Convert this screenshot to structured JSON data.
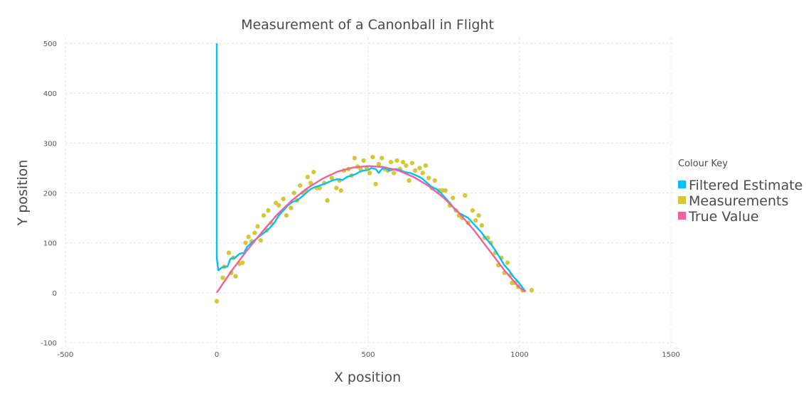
{
  "chart_data": {
    "type": "scatter",
    "title": "Measurement of a Canonball in Flight",
    "xlabel": "X position",
    "ylabel": "Y position",
    "xlim": [
      -500,
      1500
    ],
    "ylim": [
      -100,
      500
    ],
    "xticks": [
      "-500",
      "0",
      "500",
      "1000",
      "1500"
    ],
    "yticks": [
      "-100",
      "0",
      "100",
      "200",
      "300",
      "400",
      "500"
    ],
    "grid": true,
    "legend": {
      "title": "Colour Key",
      "placement": "right",
      "entries": [
        "Filtered Estimate",
        "Measurements",
        "True Value"
      ]
    },
    "series": [
      {
        "name": "Filtered Estimate",
        "kind": "line",
        "color": "#00bfff",
        "points": [
          [
            0,
            500
          ],
          [
            0,
            70
          ],
          [
            5,
            45
          ],
          [
            15,
            50
          ],
          [
            25,
            52
          ],
          [
            35,
            52
          ],
          [
            45,
            68
          ],
          [
            60,
            70
          ],
          [
            75,
            78
          ],
          [
            90,
            80
          ],
          [
            100,
            92
          ],
          [
            115,
            100
          ],
          [
            130,
            108
          ],
          [
            145,
            115
          ],
          [
            160,
            122
          ],
          [
            175,
            130
          ],
          [
            190,
            140
          ],
          [
            205,
            155
          ],
          [
            220,
            165
          ],
          [
            235,
            175
          ],
          [
            250,
            182
          ],
          [
            265,
            185
          ],
          [
            280,
            192
          ],
          [
            295,
            200
          ],
          [
            310,
            208
          ],
          [
            325,
            212
          ],
          [
            340,
            215
          ],
          [
            355,
            218
          ],
          [
            370,
            222
          ],
          [
            385,
            226
          ],
          [
            400,
            228
          ],
          [
            415,
            226
          ],
          [
            430,
            232
          ],
          [
            445,
            235
          ],
          [
            460,
            238
          ],
          [
            470,
            242
          ],
          [
            485,
            245
          ],
          [
            500,
            246
          ],
          [
            510,
            250
          ],
          [
            525,
            248
          ],
          [
            535,
            240
          ],
          [
            545,
            248
          ],
          [
            555,
            250
          ],
          [
            570,
            245
          ],
          [
            590,
            248
          ],
          [
            605,
            246
          ],
          [
            620,
            242
          ],
          [
            640,
            240
          ],
          [
            655,
            236
          ],
          [
            670,
            232
          ],
          [
            680,
            228
          ],
          [
            695,
            220
          ],
          [
            710,
            212
          ],
          [
            725,
            208
          ],
          [
            740,
            200
          ],
          [
            755,
            190
          ],
          [
            770,
            180
          ],
          [
            785,
            168
          ],
          [
            800,
            160
          ],
          [
            815,
            155
          ],
          [
            830,
            150
          ],
          [
            845,
            140
          ],
          [
            860,
            130
          ],
          [
            875,
            120
          ],
          [
            890,
            108
          ],
          [
            905,
            98
          ],
          [
            920,
            85
          ],
          [
            935,
            70
          ],
          [
            950,
            55
          ],
          [
            965,
            45
          ],
          [
            980,
            32
          ],
          [
            995,
            22
          ],
          [
            1010,
            10
          ],
          [
            1020,
            2
          ]
        ]
      },
      {
        "name": "Measurements",
        "kind": "scatter",
        "color": "#d4c838",
        "points": [
          [
            0,
            -17
          ],
          [
            20,
            30
          ],
          [
            25,
            52
          ],
          [
            40,
            80
          ],
          [
            48,
            40
          ],
          [
            55,
            70
          ],
          [
            62,
            33
          ],
          [
            75,
            58
          ],
          [
            85,
            60
          ],
          [
            95,
            100
          ],
          [
            105,
            112
          ],
          [
            115,
            103
          ],
          [
            125,
            120
          ],
          [
            135,
            133
          ],
          [
            145,
            105
          ],
          [
            155,
            155
          ],
          [
            165,
            125
          ],
          [
            170,
            165
          ],
          [
            180,
            140
          ],
          [
            195,
            180
          ],
          [
            205,
            175
          ],
          [
            220,
            188
          ],
          [
            230,
            155
          ],
          [
            245,
            170
          ],
          [
            255,
            200
          ],
          [
            265,
            185
          ],
          [
            275,
            215
          ],
          [
            285,
            200
          ],
          [
            295,
            205
          ],
          [
            300,
            232
          ],
          [
            310,
            220
          ],
          [
            320,
            242
          ],
          [
            330,
            210
          ],
          [
            340,
            210
          ],
          [
            355,
            220
          ],
          [
            365,
            185
          ],
          [
            380,
            230
          ],
          [
            395,
            210
          ],
          [
            405,
            225
          ],
          [
            410,
            205
          ],
          [
            420,
            245
          ],
          [
            435,
            248
          ],
          [
            445,
            235
          ],
          [
            455,
            270
          ],
          [
            465,
            253
          ],
          [
            475,
            248
          ],
          [
            485,
            265
          ],
          [
            495,
            250
          ],
          [
            505,
            240
          ],
          [
            515,
            272
          ],
          [
            525,
            218
          ],
          [
            535,
            258
          ],
          [
            545,
            270
          ],
          [
            555,
            248
          ],
          [
            565,
            245
          ],
          [
            575,
            262
          ],
          [
            585,
            240
          ],
          [
            595,
            265
          ],
          [
            605,
            248
          ],
          [
            615,
            262
          ],
          [
            625,
            255
          ],
          [
            635,
            225
          ],
          [
            645,
            260
          ],
          [
            655,
            245
          ],
          [
            670,
            250
          ],
          [
            680,
            240
          ],
          [
            690,
            255
          ],
          [
            700,
            230
          ],
          [
            710,
            210
          ],
          [
            720,
            225
          ],
          [
            735,
            205
          ],
          [
            745,
            205
          ],
          [
            755,
            205
          ],
          [
            770,
            175
          ],
          [
            780,
            190
          ],
          [
            790,
            165
          ],
          [
            800,
            155
          ],
          [
            810,
            150
          ],
          [
            820,
            195
          ],
          [
            830,
            140
          ],
          [
            845,
            165
          ],
          [
            855,
            145
          ],
          [
            865,
            155
          ],
          [
            875,
            135
          ],
          [
            885,
            110
          ],
          [
            895,
            110
          ],
          [
            905,
            100
          ],
          [
            920,
            80
          ],
          [
            930,
            55
          ],
          [
            940,
            70
          ],
          [
            950,
            40
          ],
          [
            960,
            60
          ],
          [
            970,
            35
          ],
          [
            975,
            20
          ],
          [
            985,
            20
          ],
          [
            995,
            12
          ],
          [
            1010,
            5
          ],
          [
            1040,
            5
          ]
        ]
      },
      {
        "name": "True Value",
        "kind": "line",
        "color": "#f0609e",
        "points": [
          [
            0,
            0
          ],
          [
            50,
            45
          ],
          [
            100,
            85
          ],
          [
            150,
            122
          ],
          [
            200,
            157
          ],
          [
            250,
            186
          ],
          [
            300,
            210
          ],
          [
            350,
            229
          ],
          [
            400,
            243
          ],
          [
            450,
            251
          ],
          [
            500,
            254
          ],
          [
            550,
            252
          ],
          [
            600,
            245
          ],
          [
            650,
            232
          ],
          [
            700,
            214
          ],
          [
            750,
            190
          ],
          [
            800,
            160
          ],
          [
            850,
            125
          ],
          [
            900,
            85
          ],
          [
            950,
            45
          ],
          [
            1000,
            10
          ],
          [
            1020,
            2
          ]
        ]
      }
    ]
  }
}
